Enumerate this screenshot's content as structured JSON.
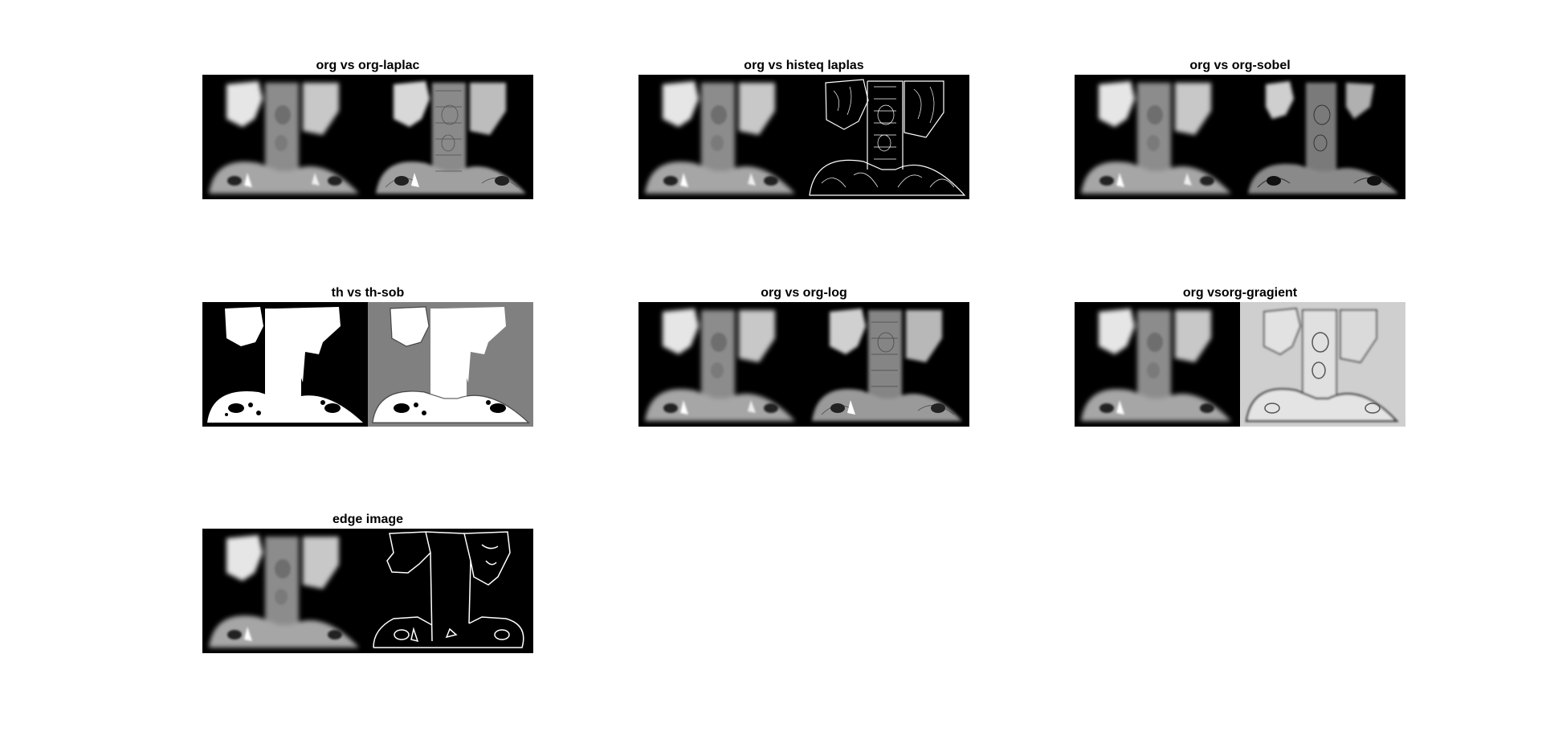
{
  "figure": {
    "background": "#ffffff",
    "subplots": [
      {
        "title": "org vs org-laplac",
        "left": "original",
        "right": "laplacian"
      },
      {
        "title": "org vs histeq laplas",
        "left": "original",
        "right": "histeq-edges"
      },
      {
        "title": "org vs org-sobel",
        "left": "original",
        "right": "sobel"
      },
      {
        "title": "th vs th-sob",
        "left": "threshold",
        "right": "threshold-sobel"
      },
      {
        "title": "org vs org-log",
        "left": "original",
        "right": "log"
      },
      {
        "title": "org vsorg-gragient",
        "left": "original",
        "right": "gradient"
      },
      {
        "title": "edge image",
        "left": "original",
        "right": "edge-outline"
      }
    ]
  }
}
